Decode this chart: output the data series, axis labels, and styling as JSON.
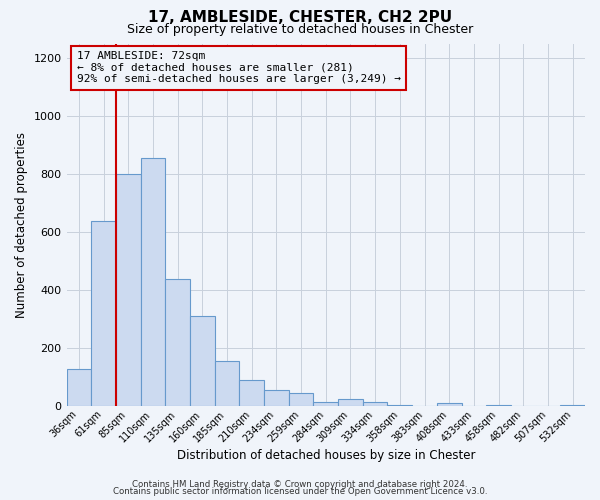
{
  "title": "17, AMBLESIDE, CHESTER, CH2 2PU",
  "subtitle": "Size of property relative to detached houses in Chester",
  "xlabel": "Distribution of detached houses by size in Chester",
  "ylabel": "Number of detached properties",
  "bar_labels": [
    "36sqm",
    "61sqm",
    "85sqm",
    "110sqm",
    "135sqm",
    "160sqm",
    "185sqm",
    "210sqm",
    "234sqm",
    "259sqm",
    "284sqm",
    "309sqm",
    "334sqm",
    "358sqm",
    "383sqm",
    "408sqm",
    "433sqm",
    "458sqm",
    "482sqm",
    "507sqm",
    "532sqm"
  ],
  "bar_values": [
    130,
    640,
    800,
    855,
    440,
    310,
    155,
    90,
    55,
    45,
    15,
    25,
    15,
    5,
    0,
    10,
    0,
    5,
    0,
    0,
    5
  ],
  "bar_color": "#ccdaf0",
  "bar_edgecolor": "#6699cc",
  "vline_color": "#cc0000",
  "annotation_title": "17 AMBLESIDE: 72sqm",
  "annotation_line1": "← 8% of detached houses are smaller (281)",
  "annotation_line2": "92% of semi-detached houses are larger (3,249) →",
  "annotation_box_edgecolor": "#cc0000",
  "ylim": [
    0,
    1250
  ],
  "yticks": [
    0,
    200,
    400,
    600,
    800,
    1000,
    1200
  ],
  "footer_line1": "Contains HM Land Registry data © Crown copyright and database right 2024.",
  "footer_line2": "Contains public sector information licensed under the Open Government Licence v3.0.",
  "bg_color": "#f0f4fa",
  "grid_color": "#c8d0dc"
}
